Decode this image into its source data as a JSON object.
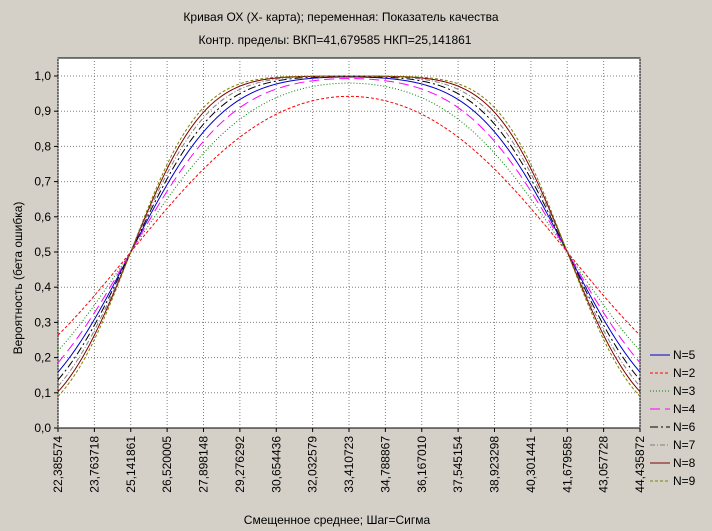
{
  "chart_data": {
    "type": "line",
    "title": "Кривая ОХ (Х- карта); переменная: Показатель качества",
    "subtitle": "Контр. пределы: ВКП=41,679585 НКП=25,141861",
    "xlabel": "Смещенное среднее; Шаг=Сигма",
    "ylabel": "Вероятность (бета ошибка)",
    "x_ticks": [
      "22,385574",
      "23,763718",
      "25,141861",
      "26,520005",
      "27,898148",
      "29,276292",
      "30,654436",
      "32,032579",
      "33,410723",
      "34,788867",
      "36,167010",
      "37,545154",
      "38,923298",
      "40,301441",
      "41,679585",
      "43,057728",
      "44,435872"
    ],
    "y_ticks": [
      "0,0",
      "0,1",
      "0,2",
      "0,3",
      "0,4",
      "0,5",
      "0,6",
      "0,7",
      "0,8",
      "0,9",
      "1,0"
    ],
    "xlim": [
      22.385574,
      44.435872
    ],
    "ylim": [
      0,
      1
    ],
    "grid": true,
    "legend_position": "bottom-right",
    "center": 33.410723,
    "step": 1.378144,
    "series": [
      {
        "name": "N=5",
        "n": 5,
        "color": "#0000cc",
        "dash": ""
      },
      {
        "name": "N=2",
        "n": 2,
        "color": "#ff0000",
        "dash": "3,2"
      },
      {
        "name": "N=3",
        "n": 3,
        "color": "#008000",
        "dash": "1,2"
      },
      {
        "name": "N=4",
        "n": 4,
        "color": "#ff00ff",
        "dash": "10,5"
      },
      {
        "name": "N=6",
        "n": 6,
        "color": "#000000",
        "dash": "8,3,2,3"
      },
      {
        "name": "N=7",
        "n": 7,
        "color": "#808080",
        "dash": "5,2,1,2"
      },
      {
        "name": "N=8",
        "n": 8,
        "color": "#800000",
        "dash": ""
      },
      {
        "name": "N=9",
        "n": 9,
        "color": "#808000",
        "dash": "3,2"
      }
    ]
  }
}
